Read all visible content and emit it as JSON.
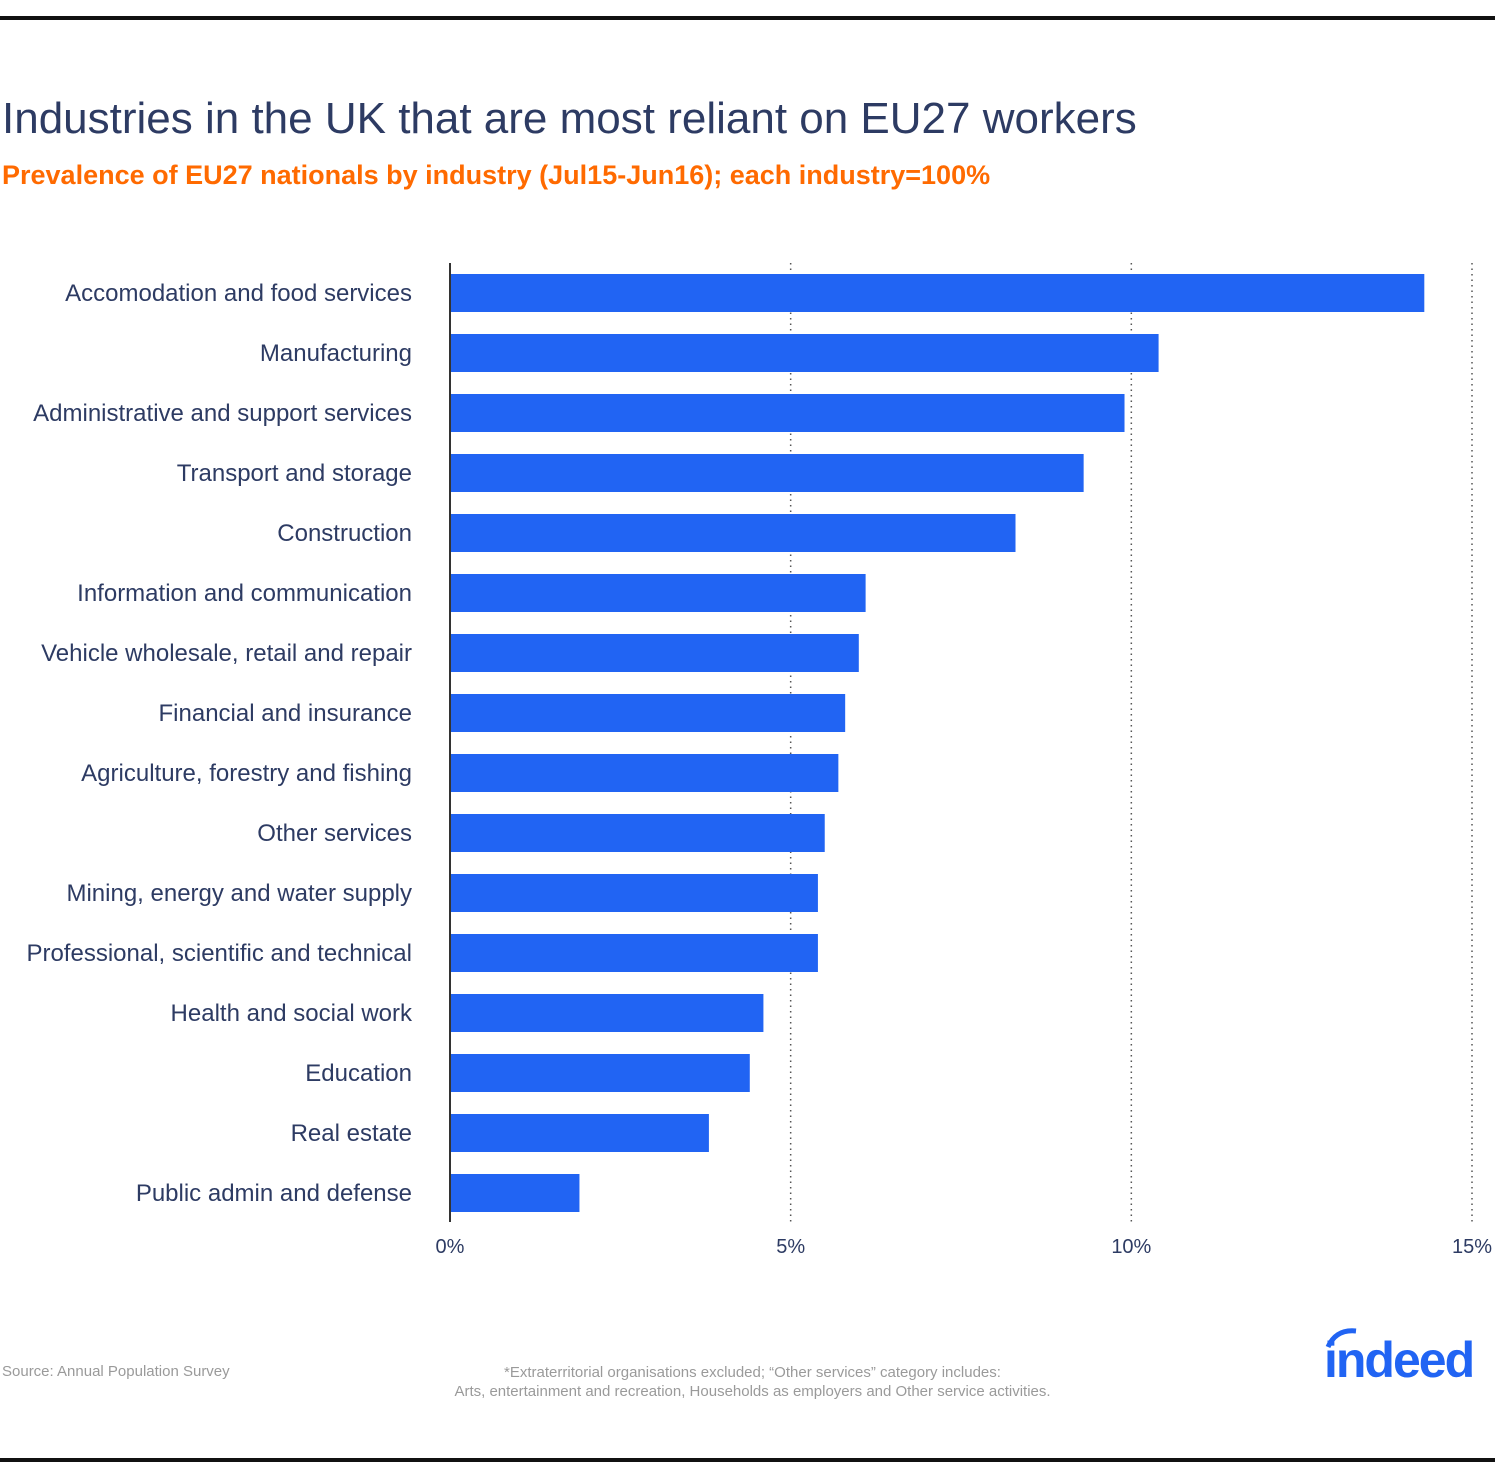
{
  "chart_data": {
    "type": "bar",
    "orientation": "horizontal",
    "title": "Industries in the UK that are most reliant on EU27 workers",
    "subtitle": "Prevalence of EU27 nationals by industry (Jul15-Jun16); each industry=100%",
    "categories": [
      "Accomodation and food services",
      "Manufacturing",
      "Administrative and support services",
      "Transport and storage",
      "Construction",
      "Information and communication",
      "Vehicle wholesale, retail and repair",
      "Financial and insurance",
      "Agriculture, forestry and fishing",
      "Other services",
      "Mining, energy and water supply",
      "Professional, scientific and technical",
      "Health and social work",
      "Education",
      "Real estate",
      "Public admin and defense"
    ],
    "values": [
      14.3,
      10.4,
      9.9,
      9.3,
      8.3,
      6.1,
      6.0,
      5.8,
      5.7,
      5.5,
      5.4,
      5.4,
      4.6,
      4.4,
      3.8,
      1.9
    ],
    "xlim": [
      0,
      15
    ],
    "xticks": [
      0,
      5,
      10,
      15
    ],
    "xtick_labels": [
      "0%",
      "5%",
      "10%",
      "15%"
    ],
    "grid": "vertical dotted",
    "bar_color": "#2164f3"
  },
  "footer": {
    "source": "Source: Annual Population Survey",
    "note_line1": "*Extraterritorial organisations excluded; “Other services” category includes:",
    "note_line2": "Arts, entertainment and recreation, Households as employers and Other service activities.",
    "logo": "indeed"
  },
  "colors": {
    "title": "#2d3b63",
    "subtitle": "#ff6a00",
    "logo": "#2164f3"
  }
}
